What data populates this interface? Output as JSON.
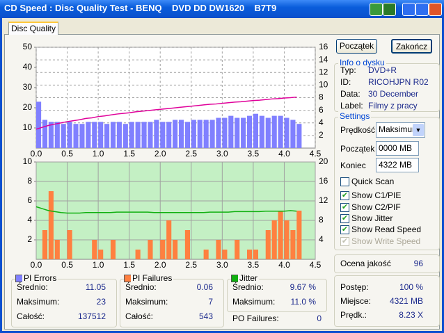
{
  "window": {
    "title": "CD Speed : Disc Quality Test - BENQ    DVD DD DW1620    B7T9"
  },
  "tab": "Disc Quality",
  "buttons": {
    "start": "Początek",
    "stop": "Zakończ"
  },
  "disc_info": {
    "title": "Info o dysku",
    "rows": [
      [
        "Typ:",
        "DVD+R"
      ],
      [
        "ID:",
        "RICOHJPN R02"
      ],
      [
        "Data:",
        "30 December"
      ],
      [
        "Label:",
        "Filmy z pracy"
      ]
    ]
  },
  "settings": {
    "title": "Settings",
    "speed_label": "Prędkość",
    "speed_value": "Maksimum",
    "start_label": "Początek",
    "start_value": "0000 MB",
    "end_label": "Koniec",
    "end_value": "4322 MB",
    "checkboxes": [
      {
        "label": "Quick Scan",
        "checked": false,
        "enabled": true
      },
      {
        "label": "Show C1/PIE",
        "checked": true,
        "enabled": true
      },
      {
        "label": "Show C2/PIF",
        "checked": true,
        "enabled": true
      },
      {
        "label": "Show Jitter",
        "checked": true,
        "enabled": true
      },
      {
        "label": "Show Read Speed",
        "checked": true,
        "enabled": true
      },
      {
        "label": "Show Write Speed",
        "checked": true,
        "enabled": false
      }
    ]
  },
  "quality": {
    "label": "Ocena jakość",
    "value": "96"
  },
  "progress": {
    "rows": [
      [
        "Postęp:",
        "100 %"
      ],
      [
        "Miejsce:",
        "4321 MB"
      ],
      [
        "Prędk.:",
        "8.23 X"
      ]
    ]
  },
  "stats": [
    {
      "rows": [
        [
          "Średnio:",
          "11.05"
        ],
        [
          "Maksimum:",
          "23"
        ],
        [
          "Całość:",
          "137512"
        ]
      ]
    },
    {
      "rows": [
        [
          "Średnio:",
          "0.06"
        ],
        [
          "Maksimum:",
          "7"
        ],
        [
          "Całość:",
          "543"
        ]
      ]
    },
    {
      "rows": [
        [
          "Średnio:",
          "9.67 %"
        ],
        [
          "Maksimum:",
          "11.0 %"
        ]
      ]
    }
  ],
  "po_failures": {
    "label": "PO Failures:",
    "value": "0"
  },
  "chart_data": [
    {
      "type": "bar",
      "background": "#ffffff",
      "grid": "dashed",
      "x": [
        0,
        0.1,
        0.2,
        0.3,
        0.4,
        0.5,
        0.6,
        0.7,
        0.8,
        0.9,
        1.0,
        1.1,
        1.2,
        1.3,
        1.4,
        1.5,
        1.6,
        1.7,
        1.8,
        1.9,
        2.0,
        2.1,
        2.2,
        2.3,
        2.4,
        2.5,
        2.6,
        2.7,
        2.8,
        2.9,
        3.0,
        3.1,
        3.2,
        3.3,
        3.4,
        3.5,
        3.6,
        3.7,
        3.8,
        3.9,
        4.0,
        4.1,
        4.2
      ],
      "xlim": [
        0,
        4.5
      ],
      "xticks": [
        {
          "value": 0,
          "label": "0.0"
        },
        0.5,
        {
          "value": 1,
          "label": "1.0"
        },
        1.5,
        {
          "value": 2,
          "label": "2.0"
        },
        2.5,
        {
          "value": 3,
          "label": "3.0"
        },
        3.5,
        {
          "value": 4,
          "label": "4.0"
        },
        4.5
      ],
      "ylim": [
        0,
        50
      ],
      "yticks": [
        10,
        20,
        30,
        40,
        50
      ],
      "y2lim": [
        0,
        16
      ],
      "y2ticks": [
        2,
        4,
        6,
        8,
        10,
        12,
        14,
        16
      ],
      "series": [
        {
          "name": "PI Errors",
          "type": "bar",
          "color": "#8080ff",
          "values": [
            23,
            14,
            13,
            13,
            12,
            13,
            12,
            12,
            13,
            13,
            13,
            12,
            13,
            13,
            12,
            13,
            13,
            13,
            13,
            14,
            13,
            13,
            14,
            14,
            13,
            14,
            14,
            14,
            14,
            15,
            15,
            16,
            15,
            15,
            16,
            17,
            16,
            15,
            16,
            16,
            15,
            14,
            12
          ]
        },
        {
          "type": "line",
          "axis": "y2",
          "color": "#e0009a",
          "values": [
            3.0,
            3.3,
            3.6,
            3.8,
            4.0,
            4.2,
            4.35,
            4.5,
            4.7,
            4.8,
            5.0,
            5.1,
            5.25,
            5.4,
            5.5,
            5.6,
            5.75,
            5.85,
            5.95,
            6.05,
            6.15,
            6.25,
            6.35,
            6.45,
            6.55,
            6.65,
            6.75,
            6.85,
            6.95,
            7.0,
            7.1,
            7.2,
            7.3,
            7.35,
            7.45,
            7.55,
            7.6,
            7.7,
            7.8,
            7.85,
            7.95,
            8.0,
            8.1
          ]
        }
      ]
    },
    {
      "type": "bar",
      "background": "#c4f0c4",
      "grid": "solid",
      "x": [
        0,
        0.1,
        0.2,
        0.3,
        0.4,
        0.5,
        0.6,
        0.7,
        0.8,
        0.9,
        1.0,
        1.1,
        1.2,
        1.3,
        1.4,
        1.5,
        1.6,
        1.7,
        1.8,
        1.9,
        2.0,
        2.1,
        2.2,
        2.3,
        2.4,
        2.5,
        2.6,
        2.7,
        2.8,
        2.9,
        3.0,
        3.1,
        3.2,
        3.3,
        3.4,
        3.5,
        3.6,
        3.7,
        3.8,
        3.9,
        4.0,
        4.1,
        4.2
      ],
      "xlim": [
        0,
        4.5
      ],
      "xticks": [
        {
          "value": 0,
          "label": "0.0"
        },
        0.5,
        {
          "value": 1,
          "label": "1.0"
        },
        1.5,
        {
          "value": 2,
          "label": "2.0"
        },
        2.5,
        {
          "value": 3,
          "label": "3.0"
        },
        3.5,
        {
          "value": 4,
          "label": "4.0"
        },
        4.5
      ],
      "ylim": [
        0,
        10
      ],
      "yticks": [
        2,
        4,
        6,
        8,
        10
      ],
      "y2lim": [
        0,
        20
      ],
      "y2ticks": [
        4,
        8,
        12,
        16,
        20
      ],
      "series": [
        {
          "name": "PI Failures",
          "type": "bar",
          "color": "#ff8040",
          "values": [
            0,
            3,
            7,
            2,
            0,
            3,
            0,
            0,
            0,
            2,
            1,
            0,
            2,
            0,
            0,
            0,
            1,
            0,
            2,
            0,
            2,
            4,
            2,
            0,
            3,
            0,
            0,
            1,
            0,
            2,
            1,
            0,
            2,
            0,
            1,
            1,
            0,
            3,
            4,
            5,
            4,
            3,
            5
          ]
        },
        {
          "name": "Jitter",
          "type": "line",
          "axis": "y2",
          "color": "#10b010",
          "values": [
            10.8,
            10.4,
            10.0,
            9.8,
            9.6,
            9.5,
            9.5,
            9.5,
            9.6,
            9.6,
            9.6,
            9.6,
            9.6,
            9.7,
            9.7,
            9.7,
            9.7,
            9.7,
            9.7,
            9.6,
            9.6,
            9.6,
            9.6,
            9.6,
            9.6,
            9.6,
            9.6,
            9.6,
            9.7,
            9.7,
            9.7,
            9.7,
            9.8,
            9.8,
            9.8,
            9.8,
            9.8,
            9.9,
            9.9,
            9.9,
            9.9,
            10.0,
            9.9
          ]
        }
      ]
    }
  ]
}
